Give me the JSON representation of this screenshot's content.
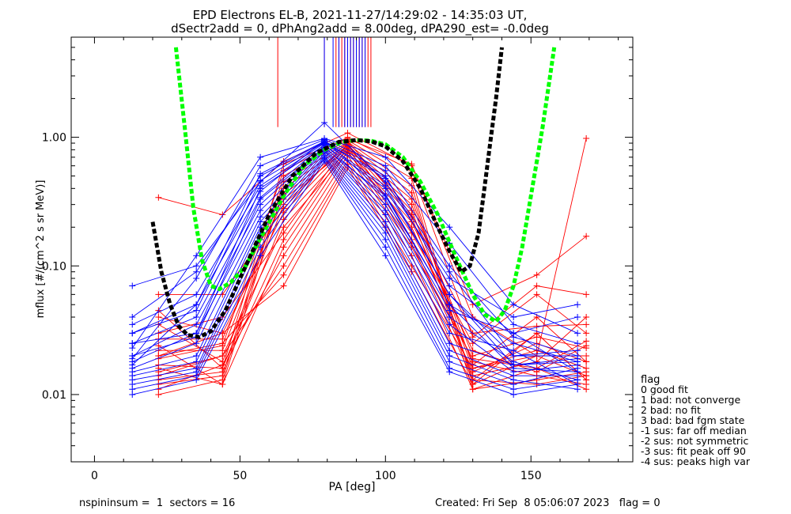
{
  "chart_data": {
    "type": "line",
    "title": [
      "EPD Electrons EL-B, 2021-11-27/14:29:02 - 14:35:03 UT,",
      "dSectr2add = 0, dPhAng2add = 8.00deg, dPA290_est=  -0.0deg"
    ],
    "xlabel": "PA [deg]",
    "ylabel": "mflux [#/(cm^2 s sr MeV)]",
    "xlim": [
      -8,
      185
    ],
    "ylim": [
      0.003,
      6.0
    ],
    "yscale": "log",
    "x_ticks": [
      0,
      50,
      100,
      150
    ],
    "y_ticks": [
      {
        "value": 0.01,
        "label": "0.01"
      },
      {
        "value": 0.1,
        "label": "0.10"
      },
      {
        "value": 1.0,
        "label": "1.00"
      }
    ],
    "grid": false,
    "colors": {
      "red": "#ff0000",
      "blue": "#0000ff",
      "green": "#00ff00",
      "black": "#000000"
    },
    "red_sweeps_x": [
      22,
      44,
      65,
      87,
      109,
      130,
      152,
      169
    ],
    "red_sweeps_y": [
      [
        0.34,
        0.25,
        0.65,
        1.08,
        0.6,
        0.05,
        0.085,
        0.17
      ],
      [
        0.045,
        0.016,
        0.62,
        0.97,
        0.62,
        0.04,
        0.02,
        0.98
      ],
      [
        0.019,
        0.024,
        0.55,
        1.0,
        0.55,
        0.028,
        0.07,
        0.06
      ],
      [
        0.012,
        0.014,
        0.5,
        0.95,
        0.48,
        0.012,
        0.02,
        0.014
      ],
      [
        0.01,
        0.013,
        0.45,
        0.92,
        0.42,
        0.011,
        0.016,
        0.011
      ],
      [
        0.016,
        0.012,
        0.4,
        0.89,
        0.37,
        0.013,
        0.03,
        0.013
      ],
      [
        0.022,
        0.022,
        0.36,
        0.85,
        0.33,
        0.017,
        0.04,
        0.018
      ],
      [
        0.027,
        0.027,
        0.33,
        0.82,
        0.3,
        0.02,
        0.028,
        0.023
      ],
      [
        0.035,
        0.018,
        0.3,
        0.88,
        0.27,
        0.016,
        0.022,
        0.016
      ],
      [
        0.06,
        0.06,
        0.28,
        0.93,
        0.25,
        0.03,
        0.034,
        0.035
      ],
      [
        0.02,
        0.03,
        0.26,
        0.86,
        0.24,
        0.014,
        0.018,
        0.04
      ],
      [
        0.017,
        0.016,
        0.23,
        0.8,
        0.22,
        0.022,
        0.015,
        0.024
      ],
      [
        0.014,
        0.02,
        0.2,
        0.76,
        0.2,
        0.018,
        0.014,
        0.012
      ],
      [
        0.03,
        0.04,
        0.18,
        0.9,
        0.18,
        0.025,
        0.06,
        0.03
      ],
      [
        0.013,
        0.015,
        0.16,
        0.84,
        0.16,
        0.015,
        0.025,
        0.018
      ],
      [
        0.024,
        0.012,
        0.14,
        0.78,
        0.15,
        0.013,
        0.012,
        0.014
      ],
      [
        0.011,
        0.017,
        0.12,
        0.72,
        0.14,
        0.019,
        0.016,
        0.026
      ],
      [
        0.015,
        0.02,
        0.1,
        0.66,
        0.12,
        0.011,
        0.013,
        0.015
      ],
      [
        0.02,
        0.025,
        0.085,
        0.62,
        0.1,
        0.016,
        0.02,
        0.02
      ],
      [
        0.04,
        0.03,
        0.07,
        0.58,
        0.09,
        0.012,
        0.03,
        0.013
      ]
    ],
    "blue_sweeps_x": [
      13,
      35,
      57,
      79,
      100,
      122,
      144,
      166
    ],
    "blue_sweeps_y": [
      [
        0.07,
        0.1,
        0.45,
        1.3,
        0.45,
        0.08,
        0.04,
        0.05
      ],
      [
        0.04,
        0.09,
        0.5,
        0.92,
        0.5,
        0.07,
        0.03,
        0.04
      ],
      [
        0.035,
        0.06,
        0.42,
        0.9,
        0.42,
        0.06,
        0.02,
        0.02
      ],
      [
        0.03,
        0.05,
        0.38,
        0.95,
        0.36,
        0.05,
        0.025,
        0.018
      ],
      [
        0.025,
        0.04,
        0.34,
        0.88,
        0.33,
        0.045,
        0.03,
        0.015
      ],
      [
        0.02,
        0.035,
        0.3,
        0.85,
        0.3,
        0.04,
        0.018,
        0.013
      ],
      [
        0.018,
        0.03,
        0.27,
        0.82,
        0.27,
        0.035,
        0.015,
        0.017
      ],
      [
        0.016,
        0.025,
        0.24,
        0.8,
        0.25,
        0.03,
        0.022,
        0.012
      ],
      [
        0.015,
        0.02,
        0.22,
        0.78,
        0.22,
        0.025,
        0.017,
        0.019
      ],
      [
        0.014,
        0.018,
        0.2,
        0.75,
        0.2,
        0.022,
        0.014,
        0.014
      ],
      [
        0.013,
        0.016,
        0.18,
        0.72,
        0.18,
        0.02,
        0.013,
        0.011
      ],
      [
        0.012,
        0.015,
        0.16,
        0.7,
        0.16,
        0.018,
        0.012,
        0.016
      ],
      [
        0.011,
        0.014,
        0.14,
        0.68,
        0.14,
        0.016,
        0.011,
        0.013
      ],
      [
        0.01,
        0.013,
        0.12,
        0.65,
        0.12,
        0.015,
        0.01,
        0.012
      ],
      [
        0.023,
        0.12,
        0.7,
        0.98,
        0.7,
        0.2,
        0.05,
        0.03
      ],
      [
        0.019,
        0.08,
        0.6,
        0.96,
        0.6,
        0.15,
        0.035,
        0.025
      ],
      [
        0.017,
        0.05,
        0.52,
        0.93,
        0.55,
        0.1,
        0.028,
        0.02
      ],
      [
        0.03,
        0.045,
        0.46,
        0.91,
        0.48,
        0.09,
        0.02,
        0.022
      ],
      [
        0.025,
        0.03,
        0.4,
        0.87,
        0.4,
        0.06,
        0.017,
        0.018
      ],
      [
        0.02,
        0.028,
        0.33,
        0.83,
        0.35,
        0.05,
        0.016,
        0.015
      ]
    ],
    "green_fit": {
      "x": [
        28,
        31,
        34,
        37,
        40,
        43,
        47,
        52,
        58,
        65,
        72,
        79,
        85,
        90,
        95,
        100,
        106,
        112,
        118,
        124,
        130,
        134,
        138,
        141,
        144,
        147,
        150,
        154,
        158
      ],
      "y": [
        5.0,
        1.2,
        0.28,
        0.11,
        0.07,
        0.066,
        0.075,
        0.1,
        0.18,
        0.35,
        0.6,
        0.8,
        0.92,
        0.95,
        0.94,
        0.88,
        0.7,
        0.45,
        0.25,
        0.12,
        0.06,
        0.042,
        0.037,
        0.045,
        0.07,
        0.14,
        0.35,
        1.2,
        5.0
      ]
    },
    "black_fit": {
      "x": [
        20,
        23,
        26,
        29,
        32,
        36,
        40,
        45,
        52,
        60,
        68,
        76,
        84,
        90,
        95,
        100,
        106,
        112,
        118,
        122,
        126,
        129,
        132,
        134,
        136,
        138,
        140
      ],
      "y": [
        0.22,
        0.09,
        0.05,
        0.034,
        0.029,
        0.028,
        0.031,
        0.045,
        0.1,
        0.25,
        0.5,
        0.75,
        0.92,
        0.95,
        0.93,
        0.85,
        0.65,
        0.4,
        0.2,
        0.13,
        0.09,
        0.1,
        0.18,
        0.4,
        0.9,
        2.0,
        5.0
      ]
    },
    "red_vlines_x": [
      63,
      79,
      83,
      84,
      85,
      86,
      87,
      88,
      89,
      90,
      91,
      92,
      93,
      94,
      95
    ],
    "blue_vlines_x": [
      79,
      82,
      84,
      86,
      87,
      88,
      89,
      90,
      91,
      92,
      93
    ],
    "legend": {
      "title": "flag",
      "entries": [
        " 0 good fit",
        " 1 bad: not converge",
        " 2 bad: no fit",
        " 3 bad: bad fgm state",
        "-1 sus: far off median",
        "-2 sus: not symmetric",
        "-3 sus: fit peak off 90",
        "-4 sus: peaks high var"
      ]
    }
  },
  "footer": {
    "left": "nspininsum =  1  sectors = 16",
    "right": "Created: Fri Sep  8 05:06:07 2023   flag = 0"
  }
}
